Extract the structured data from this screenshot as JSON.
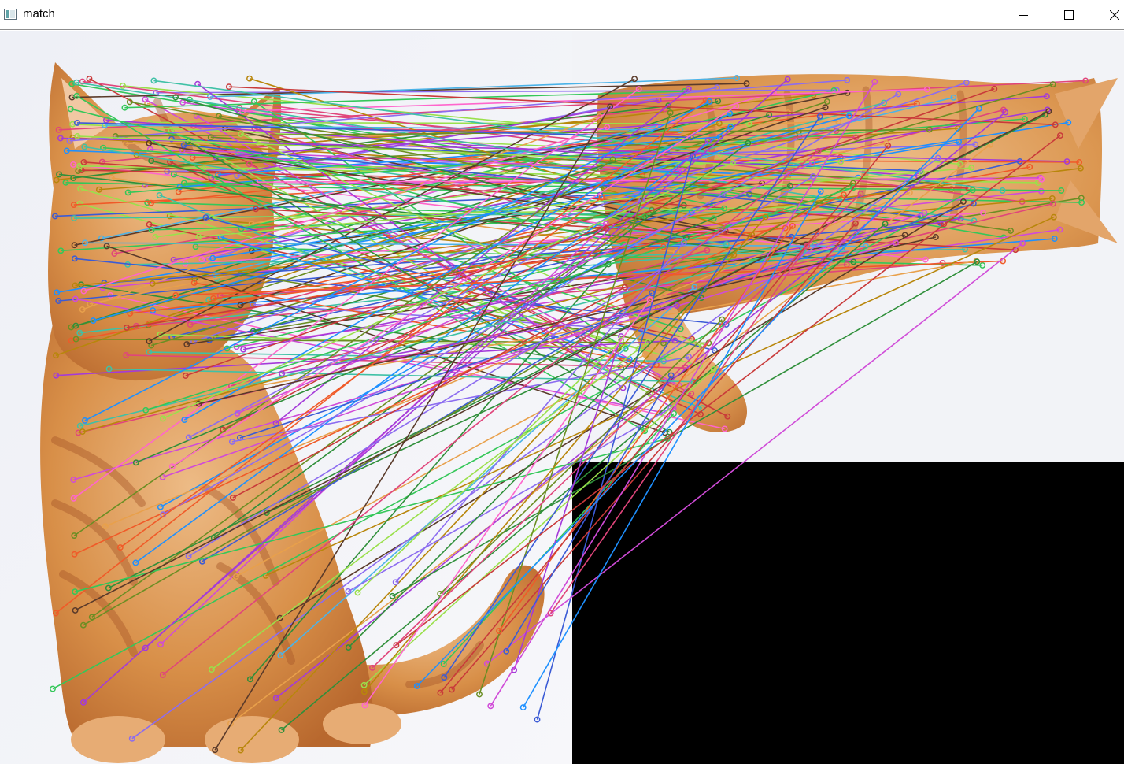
{
  "window": {
    "title": "match",
    "icons": {
      "app": "opencv-window-icon",
      "minimize": "minimize-icon",
      "maximize": "maximize-icon",
      "close": "close-icon"
    }
  },
  "colors": {
    "titlebar_bg": "#ffffff",
    "backdrop": "#f0f1f6",
    "fur_light": "#e8b07a",
    "fur_mid": "#d38a45",
    "fur_dark": "#b0612a",
    "padding_black": "#000000"
  },
  "match_colors": [
    "#e0457b",
    "#3b5bd6",
    "#34c759",
    "#a43ad9",
    "#f05a28",
    "#2f8f3a",
    "#8c6cf0",
    "#d04bd8",
    "#4bb3e8",
    "#9ae04b",
    "#5a3a2a",
    "#e8a04b",
    "#3fc1a6",
    "#c93a3a",
    "#6b8e23",
    "#ff66cc",
    "#1e90ff",
    "#b8860b"
  ]
}
